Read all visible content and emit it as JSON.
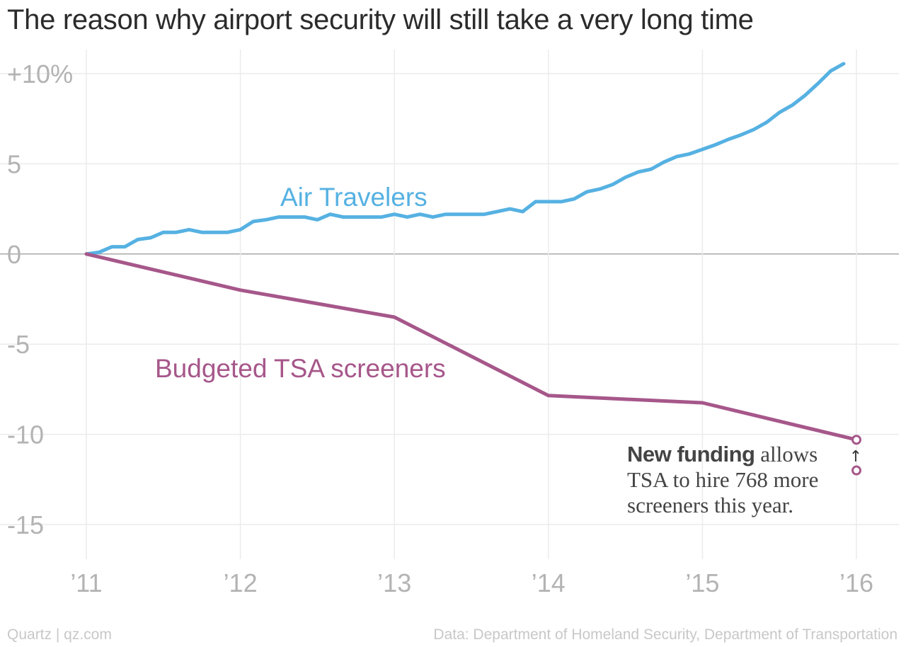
{
  "title": "The reason why airport security will still take a very long time",
  "footer": {
    "source_left": "Quartz | qz.com",
    "source_right": "Data: Department of Homeland Security, Department of Transportation"
  },
  "annotation": {
    "bold": "New funding",
    "line1_rest": " allows",
    "line2": "TSA to hire 768 more",
    "line3": "screeners this year.",
    "arrow": "↑"
  },
  "colors": {
    "air_travelers": "#56b1e2",
    "tsa_screeners": "#a6578a",
    "grid": "#ebebeb",
    "zero_line": "#a8a8a8",
    "tick_text": "#b3b3b3"
  },
  "chart_data": {
    "type": "line",
    "title": "The reason why airport security will still take a very long time",
    "xlabel": "",
    "ylabel": "",
    "xlim": [
      2011,
      2016
    ],
    "ylim": [
      -15,
      10
    ],
    "x_ticks": [
      2011,
      2012,
      2013,
      2014,
      2015,
      2016
    ],
    "x_tick_labels": [
      "’11",
      "’12",
      "’13",
      "’14",
      "’15",
      "’16"
    ],
    "y_ticks": [
      10,
      5,
      0,
      -5,
      -10,
      -15
    ],
    "y_tick_labels": [
      "+10%",
      "5",
      "0",
      "-5",
      "-10",
      "-15"
    ],
    "grid": true,
    "series": [
      {
        "name": "Air Travelers",
        "color": "#56b1e2",
        "x": [
          2011.0,
          2011.083,
          2011.167,
          2011.25,
          2011.333,
          2011.417,
          2011.5,
          2011.583,
          2011.667,
          2011.75,
          2011.833,
          2011.917,
          2012.0,
          2012.083,
          2012.167,
          2012.25,
          2012.333,
          2012.417,
          2012.5,
          2012.583,
          2012.667,
          2012.75,
          2012.833,
          2012.917,
          2013.0,
          2013.083,
          2013.167,
          2013.25,
          2013.333,
          2013.417,
          2013.5,
          2013.583,
          2013.667,
          2013.75,
          2013.833,
          2013.917,
          2014.0,
          2014.083,
          2014.167,
          2014.25,
          2014.333,
          2014.417,
          2014.5,
          2014.583,
          2014.667,
          2014.75,
          2014.833,
          2014.917,
          2015.0,
          2015.083,
          2015.167,
          2015.25,
          2015.333,
          2015.417,
          2015.5,
          2015.583,
          2015.667,
          2015.75,
          2015.833,
          2015.917
        ],
        "values": [
          0.0,
          0.1,
          0.4,
          0.4,
          0.8,
          0.9,
          1.2,
          1.2,
          1.35,
          1.2,
          1.2,
          1.2,
          1.35,
          1.8,
          1.9,
          2.05,
          2.05,
          2.05,
          1.9,
          2.2,
          2.05,
          2.05,
          2.05,
          2.05,
          2.2,
          2.05,
          2.2,
          2.05,
          2.2,
          2.2,
          2.2,
          2.2,
          2.35,
          2.5,
          2.35,
          2.9,
          2.9,
          2.9,
          3.05,
          3.45,
          3.6,
          3.85,
          4.25,
          4.55,
          4.7,
          5.1,
          5.4,
          5.55,
          5.8,
          6.05,
          6.35,
          6.6,
          6.9,
          7.3,
          7.85,
          8.25,
          8.8,
          9.45,
          10.15,
          10.55
        ]
      },
      {
        "name": "Budgeted TSA screeners",
        "color": "#a6578a",
        "x": [
          2011.0,
          2012.0,
          2013.0,
          2014.0,
          2015.0,
          2016.0
        ],
        "values": [
          0.0,
          -2.0,
          -3.5,
          -7.85,
          -8.25,
          -10.3
        ]
      }
    ],
    "markers": [
      {
        "x": 2016.0,
        "value": -10.3
      },
      {
        "x": 2016.0,
        "value": -12.0
      }
    ]
  }
}
